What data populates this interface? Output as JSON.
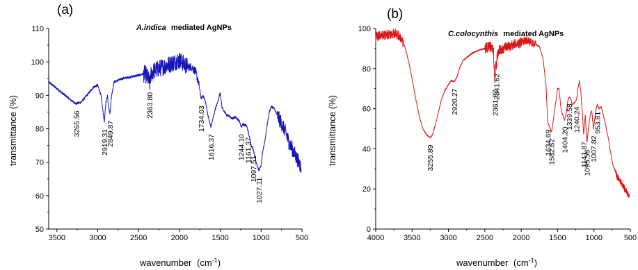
{
  "chart_data": [
    {
      "type": "line",
      "panel_label": "(a)",
      "title": "mediated AgNPs",
      "title_italic": "A.indica",
      "xlabel": "wavenumber",
      "xlabel_unit_prefix": "(cm",
      "xlabel_unit_sup": "-1",
      "xlabel_unit_suffix": ")",
      "ylabel": "transmittance (%)",
      "xlim": [
        3600,
        500
      ],
      "ylim": [
        50,
        110
      ],
      "xticks": [
        3500,
        3000,
        2500,
        2000,
        1500,
        1000,
        500
      ],
      "yticks": [
        50,
        60,
        70,
        80,
        90,
        100,
        110
      ],
      "line_color": "#1515b8",
      "series": [
        {
          "x": [
            3600,
            3500,
            3450,
            3400,
            3350,
            3300,
            3265,
            3200,
            3150,
            3100,
            3050,
            3000,
            2960,
            2940,
            2919,
            2900,
            2880,
            2870,
            2850,
            2830,
            2800,
            2700,
            2600,
            2500,
            2420,
            2380,
            2364,
            2350,
            2330,
            2300,
            2250,
            2200,
            2150,
            2100,
            2050,
            2000,
            1950,
            1900,
            1850,
            1800,
            1760,
            1734,
            1710,
            1680,
            1650,
            1616,
            1590,
            1560,
            1530,
            1500,
            1480,
            1450,
            1420,
            1400,
            1380,
            1350,
            1320,
            1290,
            1260,
            1244,
            1220,
            1200,
            1180,
            1161,
            1140,
            1120,
            1097,
            1080,
            1060,
            1040,
            1027,
            1000,
            980,
            950,
            920,
            900,
            880,
            860,
            840,
            820,
            800,
            780,
            760,
            740,
            720,
            700,
            680,
            660,
            640,
            620,
            600,
            580,
            560,
            540,
            520,
            510
          ],
          "y": [
            94,
            92,
            91,
            90,
            89,
            88,
            87.5,
            88,
            89.5,
            91,
            92.5,
            93,
            90,
            86,
            82,
            88,
            90,
            87,
            84.5,
            90,
            94,
            95,
            95.5,
            96,
            96.5,
            95,
            93,
            96,
            97,
            97.5,
            98,
            98.5,
            99,
            99.5,
            100,
            100.5,
            99.5,
            98.5,
            98.5,
            97,
            93,
            89,
            90,
            88,
            84,
            80.5,
            83,
            86,
            88,
            91,
            86.5,
            85,
            84,
            84,
            83.5,
            83,
            83.5,
            83,
            82,
            80.5,
            81.5,
            81,
            81,
            79.5,
            77,
            75,
            74,
            72,
            70,
            68.5,
            67.5,
            69,
            73,
            77,
            82,
            85,
            86.5,
            86.5,
            86,
            85,
            84,
            83,
            82,
            81,
            80,
            79,
            77.5,
            76,
            75,
            74,
            73,
            72,
            71,
            70,
            69,
            68.5
          ],
          "noise": [
            {
              "x_from": 2440,
              "x_to": 1900,
              "amp": 2.6
            },
            {
              "x_from": 1900,
              "x_to": 1760,
              "amp": 1.2
            },
            {
              "x_from": 800,
              "x_to": 510,
              "amp": 2.2
            }
          ]
        }
      ],
      "annotations": [
        {
          "text": "3265.56",
          "x": 3265,
          "y": 87.5
        },
        {
          "text": "2919.31",
          "x": 2919,
          "y": 82
        },
        {
          "text": "2849.87",
          "x": 2850,
          "y": 84.5
        },
        {
          "text": "2363.80",
          "x": 2364,
          "y": 93
        },
        {
          "text": "1734.03",
          "x": 1734,
          "y": 89
        },
        {
          "text": "1616.37",
          "x": 1616,
          "y": 80.5
        },
        {
          "text": "1244.10",
          "x": 1244,
          "y": 80.5
        },
        {
          "text": "1161.37",
          "x": 1161,
          "y": 79.5
        },
        {
          "text": "1097.51",
          "x": 1097,
          "y": 74
        },
        {
          "text": "1027.11",
          "x": 1027,
          "y": 67.5
        }
      ]
    },
    {
      "type": "line",
      "panel_label": "(b)",
      "title": "mediated AgNPs",
      "title_italic": "C.colocynthis",
      "xlabel": "wavenumber",
      "xlabel_unit_prefix": "(cm",
      "xlabel_unit_sup": "-1",
      "xlabel_unit_suffix": ")",
      "ylabel": "transmittance (%)",
      "xlim": [
        4000,
        500
      ],
      "ylim": [
        0,
        100
      ],
      "xticks": [
        4000,
        3500,
        3000,
        2500,
        2000,
        1500,
        1000,
        500
      ],
      "yticks": [
        0,
        20,
        40,
        60,
        80,
        100
      ],
      "line_color": "#d81818",
      "series": [
        {
          "x": [
            4000,
            3900,
            3800,
            3750,
            3700,
            3650,
            3600,
            3550,
            3500,
            3450,
            3400,
            3350,
            3300,
            3256,
            3220,
            3180,
            3140,
            3100,
            3050,
            3000,
            2960,
            2920,
            2880,
            2850,
            2800,
            2700,
            2600,
            2500,
            2420,
            2380,
            2362,
            2350,
            2342,
            2330,
            2300,
            2250,
            2200,
            2100,
            2000,
            1950,
            1900,
            1850,
            1800,
            1750,
            1700,
            1660,
            1635,
            1610,
            1583,
            1560,
            1530,
            1500,
            1480,
            1460,
            1440,
            1420,
            1404,
            1380,
            1360,
            1340,
            1320,
            1300,
            1270,
            1240,
            1220,
            1200,
            1180,
            1160,
            1142,
            1120,
            1096,
            1070,
            1050,
            1030,
            1008,
            990,
            970,
            954,
            930,
            900,
            880,
            860,
            840,
            820,
            800,
            780,
            760,
            740,
            720,
            700,
            680,
            660,
            640,
            620,
            600,
            580,
            560,
            540,
            520,
            510
          ],
          "y": [
            96,
            96.5,
            97,
            97.5,
            97,
            95,
            91,
            84,
            75,
            65,
            56,
            50,
            47,
            45.5,
            47,
            52,
            58,
            64,
            69,
            72,
            74,
            73.5,
            76,
            80,
            84,
            87,
            89,
            90,
            91,
            88,
            73,
            82,
            81,
            86,
            89,
            90,
            90.5,
            92,
            93,
            94,
            94,
            92.5,
            92,
            91,
            85,
            72,
            53,
            51,
            48.5,
            54,
            62,
            70,
            70,
            62,
            58,
            56,
            54.5,
            58,
            64,
            66,
            65,
            62,
            63,
            64.5,
            70,
            74,
            68,
            58,
            47,
            57,
            43,
            52,
            57,
            59,
            50,
            55,
            60,
            62,
            60,
            61,
            58,
            55,
            52,
            48,
            45,
            40,
            36,
            32,
            30,
            28,
            26,
            25,
            24,
            23,
            22,
            20,
            19,
            18,
            17,
            16
          ],
          "noise": [
            {
              "x_from": 4000,
              "x_to": 3620,
              "amp": 2.4
            },
            {
              "x_from": 2500,
              "x_to": 2000,
              "amp": 2.6
            },
            {
              "x_from": 2000,
              "x_to": 1800,
              "amp": 2.0
            },
            {
              "x_from": 700,
              "x_to": 510,
              "amp": 1.6
            }
          ]
        }
      ],
      "annotations": [
        {
          "text": "3255.89",
          "x": 3256,
          "y": 45.5
        },
        {
          "text": "2920.27",
          "x": 2920,
          "y": 73.5
        },
        {
          "text": "2361.87",
          "x": 2362,
          "y": 73
        },
        {
          "text": "2341.62",
          "x": 2342,
          "y": 81
        },
        {
          "text": "1634.69",
          "x": 1635,
          "y": 53
        },
        {
          "text": "1582.62",
          "x": 1583,
          "y": 48.5
        },
        {
          "text": "1404.20",
          "x": 1404,
          "y": 54.5
        },
        {
          "text": "1339.58",
          "x": 1340,
          "y": 66
        },
        {
          "text": "1240.24",
          "x": 1240,
          "y": 64.5
        },
        {
          "text": "1141.87",
          "x": 1142,
          "y": 47
        },
        {
          "text": "1095.58",
          "x": 1096,
          "y": 43
        },
        {
          "text": "1007.82",
          "x": 1008,
          "y": 50
        },
        {
          "text": "953.81",
          "x": 954,
          "y": 62
        }
      ]
    }
  ]
}
